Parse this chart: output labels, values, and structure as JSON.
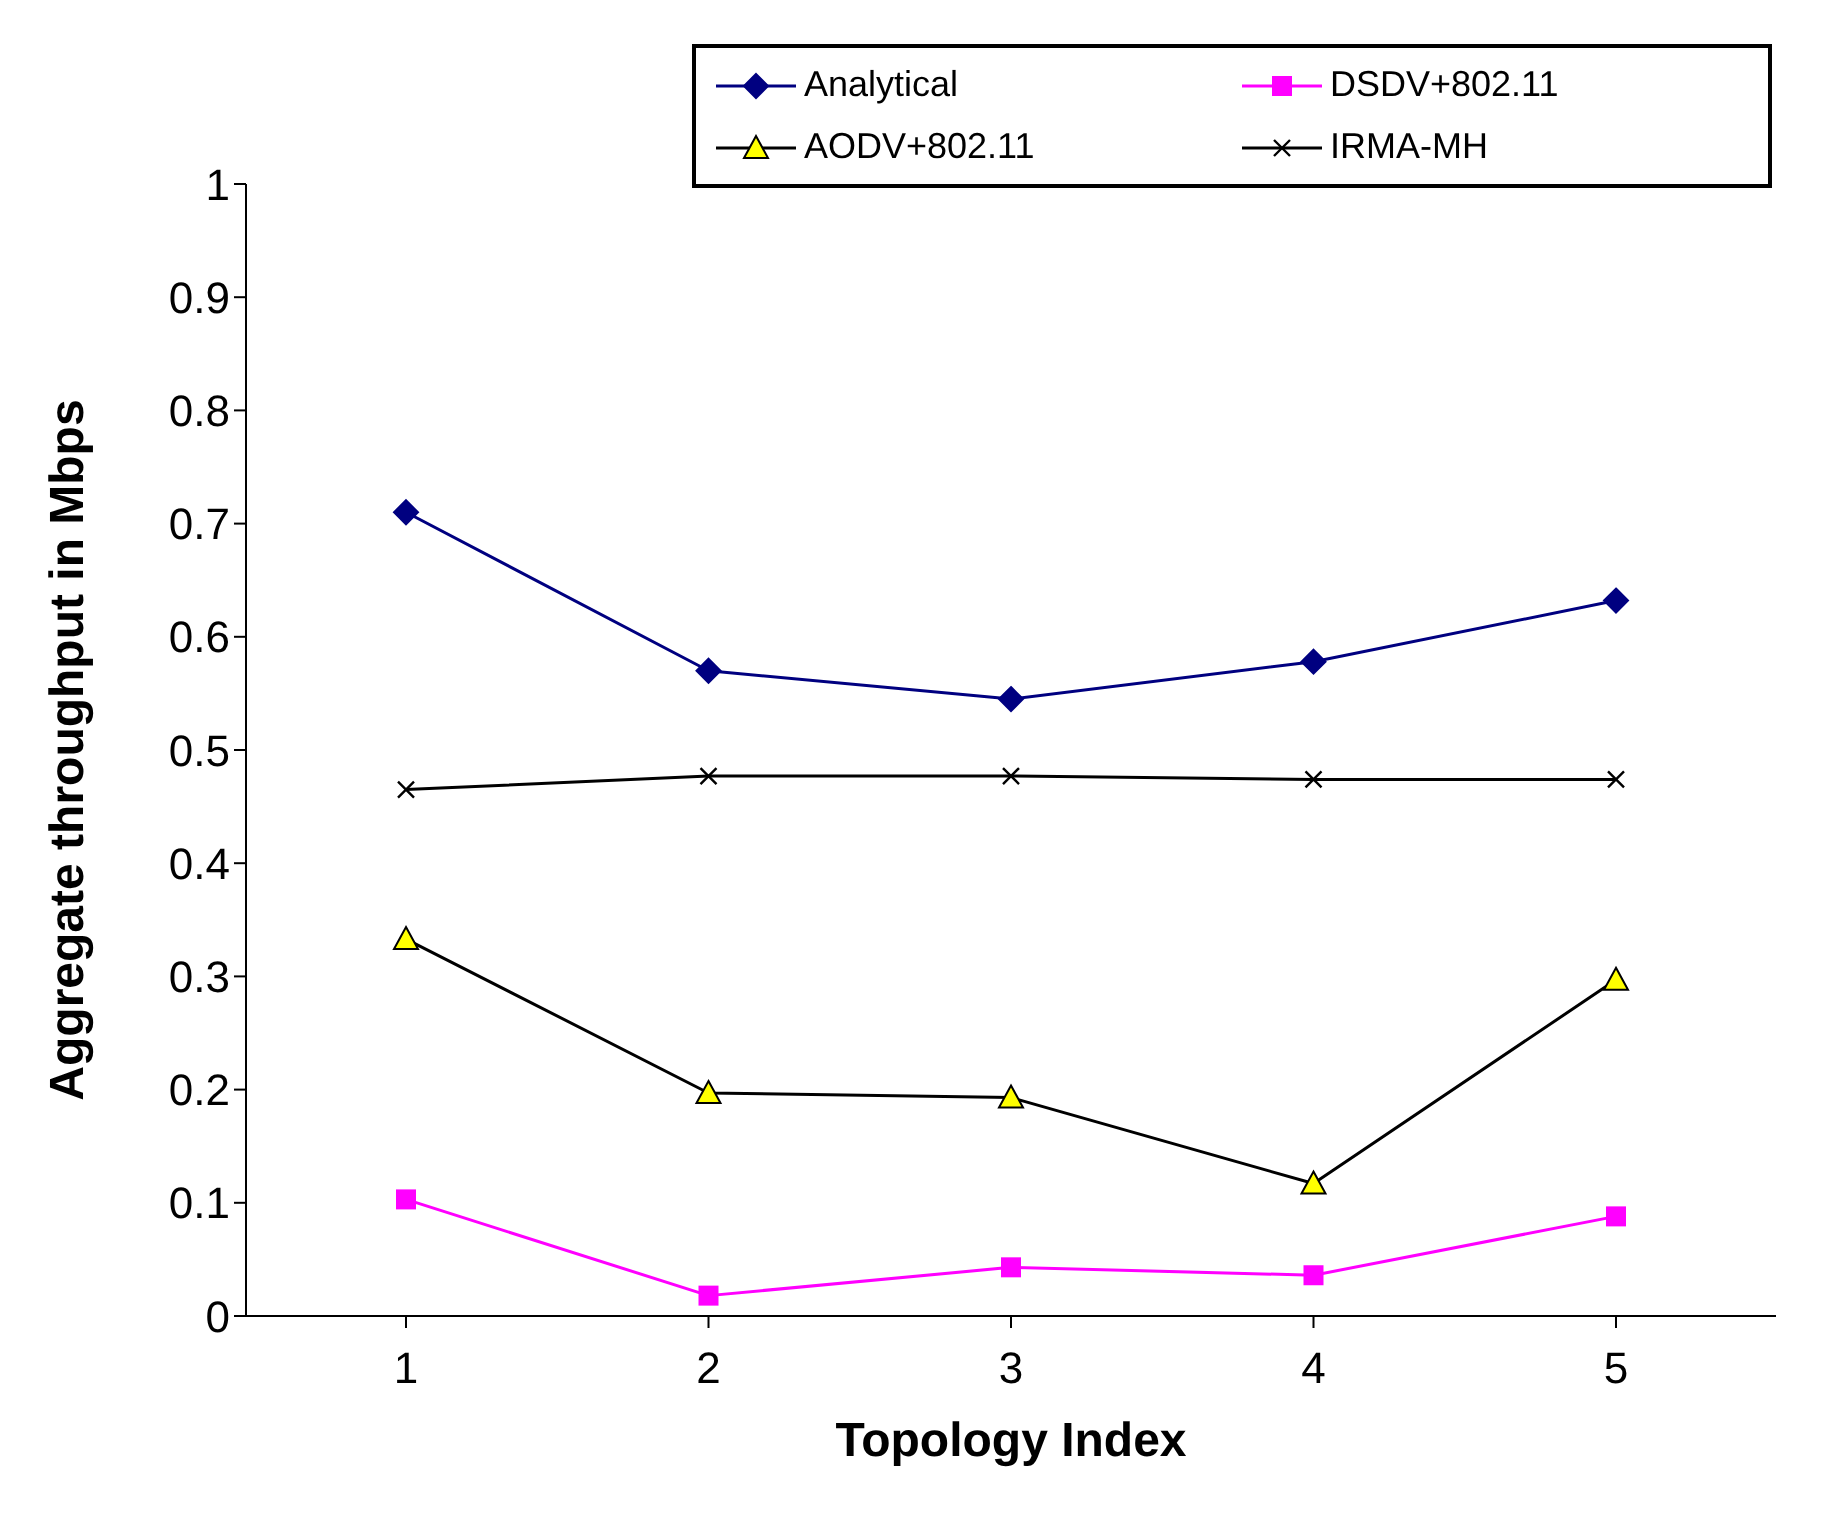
{
  "chart_data": {
    "type": "line",
    "xlabel": "Topology Index",
    "ylabel": "Aggregate throughput in Mbps",
    "categories": [
      "1",
      "2",
      "3",
      "4",
      "5"
    ],
    "ylim": [
      0,
      1
    ],
    "yticks": [
      0,
      0.1,
      0.2,
      0.3,
      0.4,
      0.5,
      0.6,
      0.7,
      0.8,
      0.9,
      1
    ],
    "grid": false,
    "legend": "top right",
    "series": [
      {
        "name": "Analytical",
        "color": "#000080",
        "marker": "diamond",
        "values": [
          0.71,
          0.57,
          0.545,
          0.578,
          0.632
        ]
      },
      {
        "name": "DSDV+802.11",
        "color": "#ff00ff",
        "marker": "square",
        "values": [
          0.103,
          0.018,
          0.043,
          0.036,
          0.088
        ]
      },
      {
        "name": "AODV+802.11",
        "color": "#000000",
        "marker": "triangle",
        "values": [
          0.333,
          0.197,
          0.193,
          0.117,
          0.297
        ]
      },
      {
        "name": "IRMA-MH",
        "color": "#000000",
        "marker": "cross",
        "values": [
          0.465,
          0.477,
          0.477,
          0.474,
          0.474
        ]
      }
    ]
  }
}
